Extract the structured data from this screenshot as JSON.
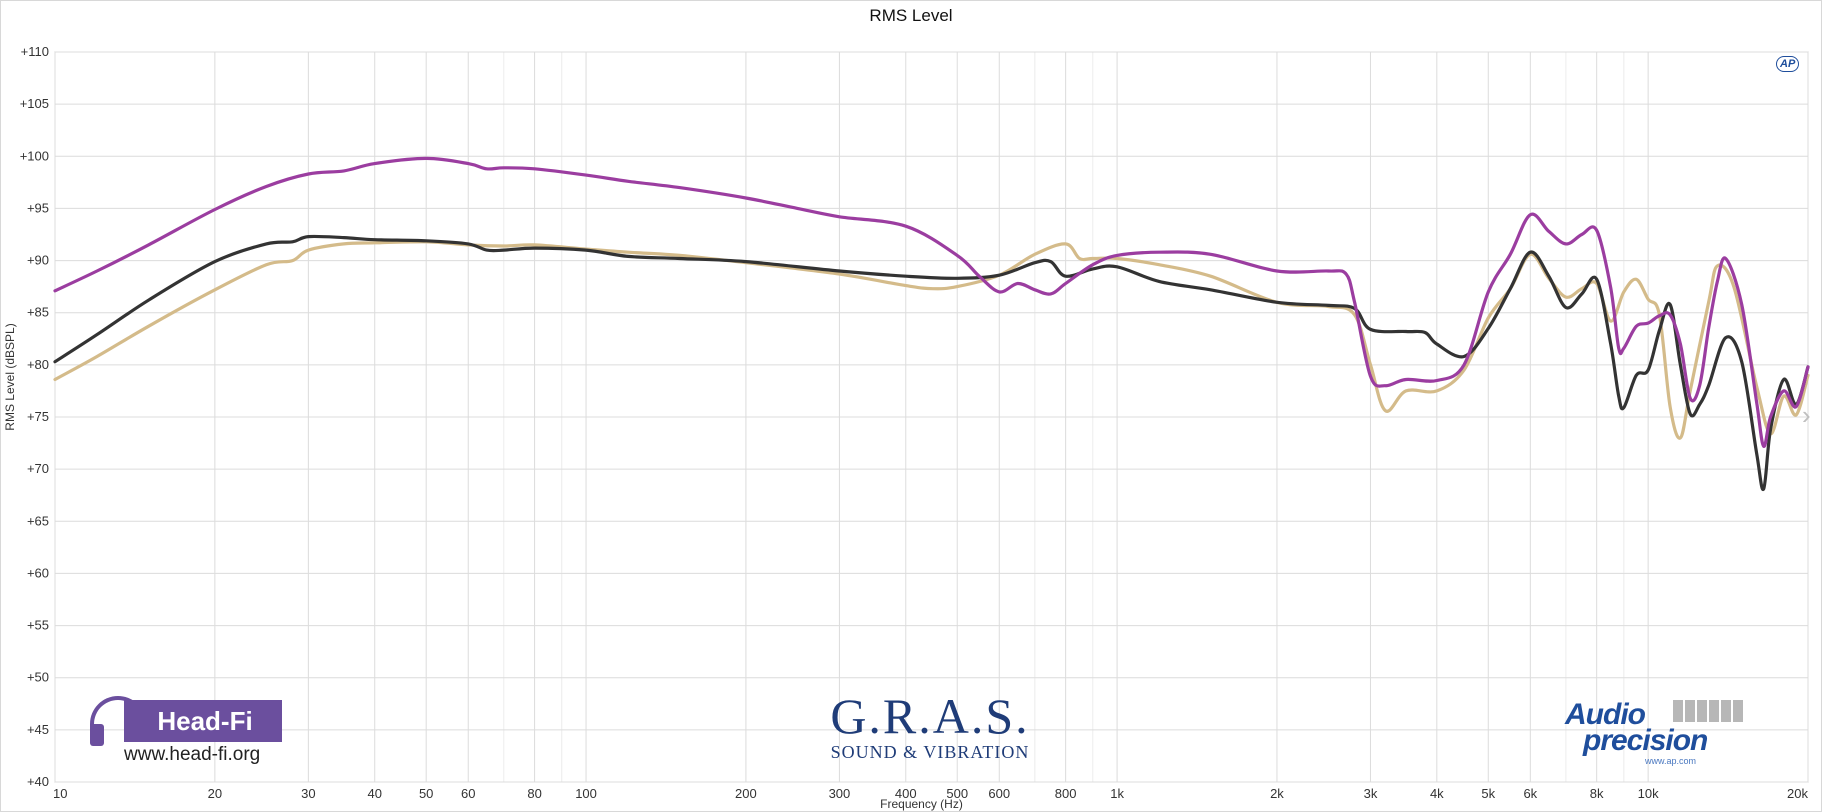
{
  "chart_data": {
    "type": "line",
    "title": "RMS Level",
    "xlabel": "Frequency (Hz)",
    "ylabel": "RMS Level  (dBSPL)",
    "xscale": "log",
    "xlim": [
      10,
      20000
    ],
    "ylim": [
      40,
      110
    ],
    "grid": true,
    "x_ticks": [
      10,
      20,
      30,
      40,
      50,
      60,
      80,
      100,
      200,
      300,
      400,
      500,
      600,
      800,
      1000,
      2000,
      3000,
      4000,
      5000,
      6000,
      8000,
      10000,
      20000
    ],
    "x_tick_labels": [
      "10",
      "20",
      "30",
      "40",
      "50",
      "60",
      "80",
      "100",
      "200",
      "300",
      "400",
      "500",
      "600",
      "800",
      "1k",
      "2k",
      "3k",
      "4k",
      "5k",
      "6k",
      "8k",
      "10k",
      "20k"
    ],
    "y_ticks": [
      40,
      45,
      50,
      55,
      60,
      65,
      70,
      75,
      80,
      85,
      90,
      95,
      100,
      105,
      110
    ],
    "y_tick_labels": [
      "+40",
      "+45",
      "+50",
      "+55",
      "+60",
      "+65",
      "+70",
      "+75",
      "+80",
      "+85",
      "+90",
      "+95",
      "+100",
      "+105",
      "+110"
    ],
    "series": [
      {
        "color": "#d4bb8a",
        "points": [
          [
            10,
            78.6
          ],
          [
            12,
            80.8
          ],
          [
            15,
            83.7
          ],
          [
            20,
            87.2
          ],
          [
            25,
            89.6
          ],
          [
            28,
            90.0
          ],
          [
            30,
            91.0
          ],
          [
            35,
            91.6
          ],
          [
            40,
            91.7
          ],
          [
            50,
            91.8
          ],
          [
            60,
            91.5
          ],
          [
            70,
            91.4
          ],
          [
            80,
            91.5
          ],
          [
            100,
            91.1
          ],
          [
            120,
            90.8
          ],
          [
            150,
            90.5
          ],
          [
            200,
            89.8
          ],
          [
            300,
            88.7
          ],
          [
            400,
            87.6
          ],
          [
            450,
            87.3
          ],
          [
            500,
            87.5
          ],
          [
            600,
            88.6
          ],
          [
            700,
            90.6
          ],
          [
            800,
            91.6
          ],
          [
            850,
            90.2
          ],
          [
            900,
            90.2
          ],
          [
            1000,
            90.2
          ],
          [
            1200,
            89.6
          ],
          [
            1500,
            88.5
          ],
          [
            2000,
            86.0
          ],
          [
            2500,
            85.6
          ],
          [
            2800,
            84.8
          ],
          [
            3000,
            80.0
          ],
          [
            3200,
            75.6
          ],
          [
            3500,
            77.5
          ],
          [
            4000,
            77.5
          ],
          [
            4500,
            79.5
          ],
          [
            5000,
            84.5
          ],
          [
            5500,
            87.3
          ],
          [
            6000,
            90.6
          ],
          [
            6500,
            88.3
          ],
          [
            7000,
            86.5
          ],
          [
            7500,
            87.3
          ],
          [
            8000,
            87.8
          ],
          [
            8500,
            84.2
          ],
          [
            9000,
            87.0
          ],
          [
            9500,
            88.2
          ],
          [
            10000,
            86.3
          ],
          [
            10500,
            84.8
          ],
          [
            11000,
            76.0
          ],
          [
            11500,
            73.0
          ],
          [
            12000,
            77.5
          ],
          [
            13000,
            86.0
          ],
          [
            13500,
            89.5
          ],
          [
            14500,
            87.5
          ],
          [
            16000,
            78.0
          ],
          [
            17000,
            73.4
          ],
          [
            18000,
            77.0
          ],
          [
            19000,
            75.2
          ],
          [
            20000,
            79.0
          ]
        ]
      },
      {
        "color": "#333333",
        "points": [
          [
            10,
            80.3
          ],
          [
            12,
            82.9
          ],
          [
            15,
            86.2
          ],
          [
            20,
            89.9
          ],
          [
            25,
            91.6
          ],
          [
            28,
            91.8
          ],
          [
            30,
            92.3
          ],
          [
            35,
            92.2
          ],
          [
            40,
            92.0
          ],
          [
            50,
            91.9
          ],
          [
            60,
            91.6
          ],
          [
            65,
            91.0
          ],
          [
            70,
            91.0
          ],
          [
            80,
            91.2
          ],
          [
            100,
            91.0
          ],
          [
            120,
            90.4
          ],
          [
            150,
            90.2
          ],
          [
            200,
            89.9
          ],
          [
            300,
            89.0
          ],
          [
            400,
            88.5
          ],
          [
            500,
            88.3
          ],
          [
            600,
            88.6
          ],
          [
            700,
            89.8
          ],
          [
            750,
            89.9
          ],
          [
            800,
            88.5
          ],
          [
            900,
            89.2
          ],
          [
            1000,
            89.4
          ],
          [
            1200,
            88.0
          ],
          [
            1500,
            87.2
          ],
          [
            2000,
            86.0
          ],
          [
            2500,
            85.7
          ],
          [
            2800,
            85.4
          ],
          [
            3000,
            83.4
          ],
          [
            3500,
            83.2
          ],
          [
            3800,
            83.1
          ],
          [
            4000,
            82.0
          ],
          [
            4500,
            80.8
          ],
          [
            5000,
            83.5
          ],
          [
            5500,
            87.3
          ],
          [
            6000,
            90.8
          ],
          [
            6500,
            88.5
          ],
          [
            7000,
            85.5
          ],
          [
            7500,
            86.8
          ],
          [
            8000,
            88.2
          ],
          [
            8500,
            82.0
          ],
          [
            8800,
            77.0
          ],
          [
            9000,
            75.9
          ],
          [
            9500,
            79.0
          ],
          [
            10000,
            79.5
          ],
          [
            10500,
            83.3
          ],
          [
            11000,
            85.8
          ],
          [
            11500,
            80.0
          ],
          [
            12000,
            75.3
          ],
          [
            12500,
            76.2
          ],
          [
            13000,
            78.0
          ],
          [
            14000,
            82.6
          ],
          [
            15000,
            80.3
          ],
          [
            16000,
            71.6
          ],
          [
            16500,
            68.1
          ],
          [
            17000,
            73.8
          ],
          [
            18000,
            78.6
          ],
          [
            19000,
            76.2
          ],
          [
            20000,
            79.8
          ]
        ]
      },
      {
        "color": "#9b3da0",
        "points": [
          [
            10,
            87.1
          ],
          [
            12,
            89.0
          ],
          [
            15,
            91.5
          ],
          [
            20,
            94.9
          ],
          [
            25,
            97.1
          ],
          [
            30,
            98.3
          ],
          [
            35,
            98.6
          ],
          [
            40,
            99.3
          ],
          [
            50,
            99.8
          ],
          [
            60,
            99.3
          ],
          [
            65,
            98.8
          ],
          [
            70,
            98.9
          ],
          [
            80,
            98.8
          ],
          [
            100,
            98.2
          ],
          [
            120,
            97.6
          ],
          [
            150,
            97.0
          ],
          [
            200,
            96.0
          ],
          [
            250,
            95.0
          ],
          [
            300,
            94.2
          ],
          [
            400,
            93.3
          ],
          [
            500,
            90.5
          ],
          [
            550,
            88.5
          ],
          [
            600,
            87.0
          ],
          [
            650,
            87.8
          ],
          [
            700,
            87.2
          ],
          [
            750,
            86.8
          ],
          [
            800,
            87.8
          ],
          [
            900,
            89.6
          ],
          [
            1000,
            90.5
          ],
          [
            1200,
            90.8
          ],
          [
            1500,
            90.6
          ],
          [
            2000,
            89.0
          ],
          [
            2500,
            89.0
          ],
          [
            2700,
            88.7
          ],
          [
            2800,
            86.0
          ],
          [
            3000,
            78.9
          ],
          [
            3200,
            78.0
          ],
          [
            3500,
            78.6
          ],
          [
            4000,
            78.5
          ],
          [
            4500,
            80.0
          ],
          [
            5000,
            87.0
          ],
          [
            5500,
            90.6
          ],
          [
            6000,
            94.4
          ],
          [
            6500,
            92.8
          ],
          [
            7000,
            91.6
          ],
          [
            7500,
            92.5
          ],
          [
            8000,
            92.9
          ],
          [
            8500,
            87.4
          ],
          [
            8800,
            81.6
          ],
          [
            9000,
            81.6
          ],
          [
            9500,
            83.7
          ],
          [
            10000,
            84.0
          ],
          [
            10500,
            84.7
          ],
          [
            11000,
            84.8
          ],
          [
            11500,
            82.0
          ],
          [
            12000,
            76.8
          ],
          [
            12500,
            78.0
          ],
          [
            13000,
            83.5
          ],
          [
            13500,
            88.0
          ],
          [
            14000,
            90.2
          ],
          [
            15000,
            85.8
          ],
          [
            16000,
            76.5
          ],
          [
            16500,
            72.2
          ],
          [
            17000,
            75.0
          ],
          [
            18000,
            77.5
          ],
          [
            19000,
            76.0
          ],
          [
            20000,
            79.8
          ]
        ]
      }
    ]
  },
  "watermarks": {
    "headfi_name": "Head-Fi",
    "headfi_url": "www.head-fi.org",
    "gras_name": "G.R.A.S.",
    "gras_sub": "SOUND & VIBRATION",
    "ap_audio": "Audio",
    "ap_precision": "precision",
    "ap_url": "www.ap.com",
    "ap_mark": "AP"
  }
}
